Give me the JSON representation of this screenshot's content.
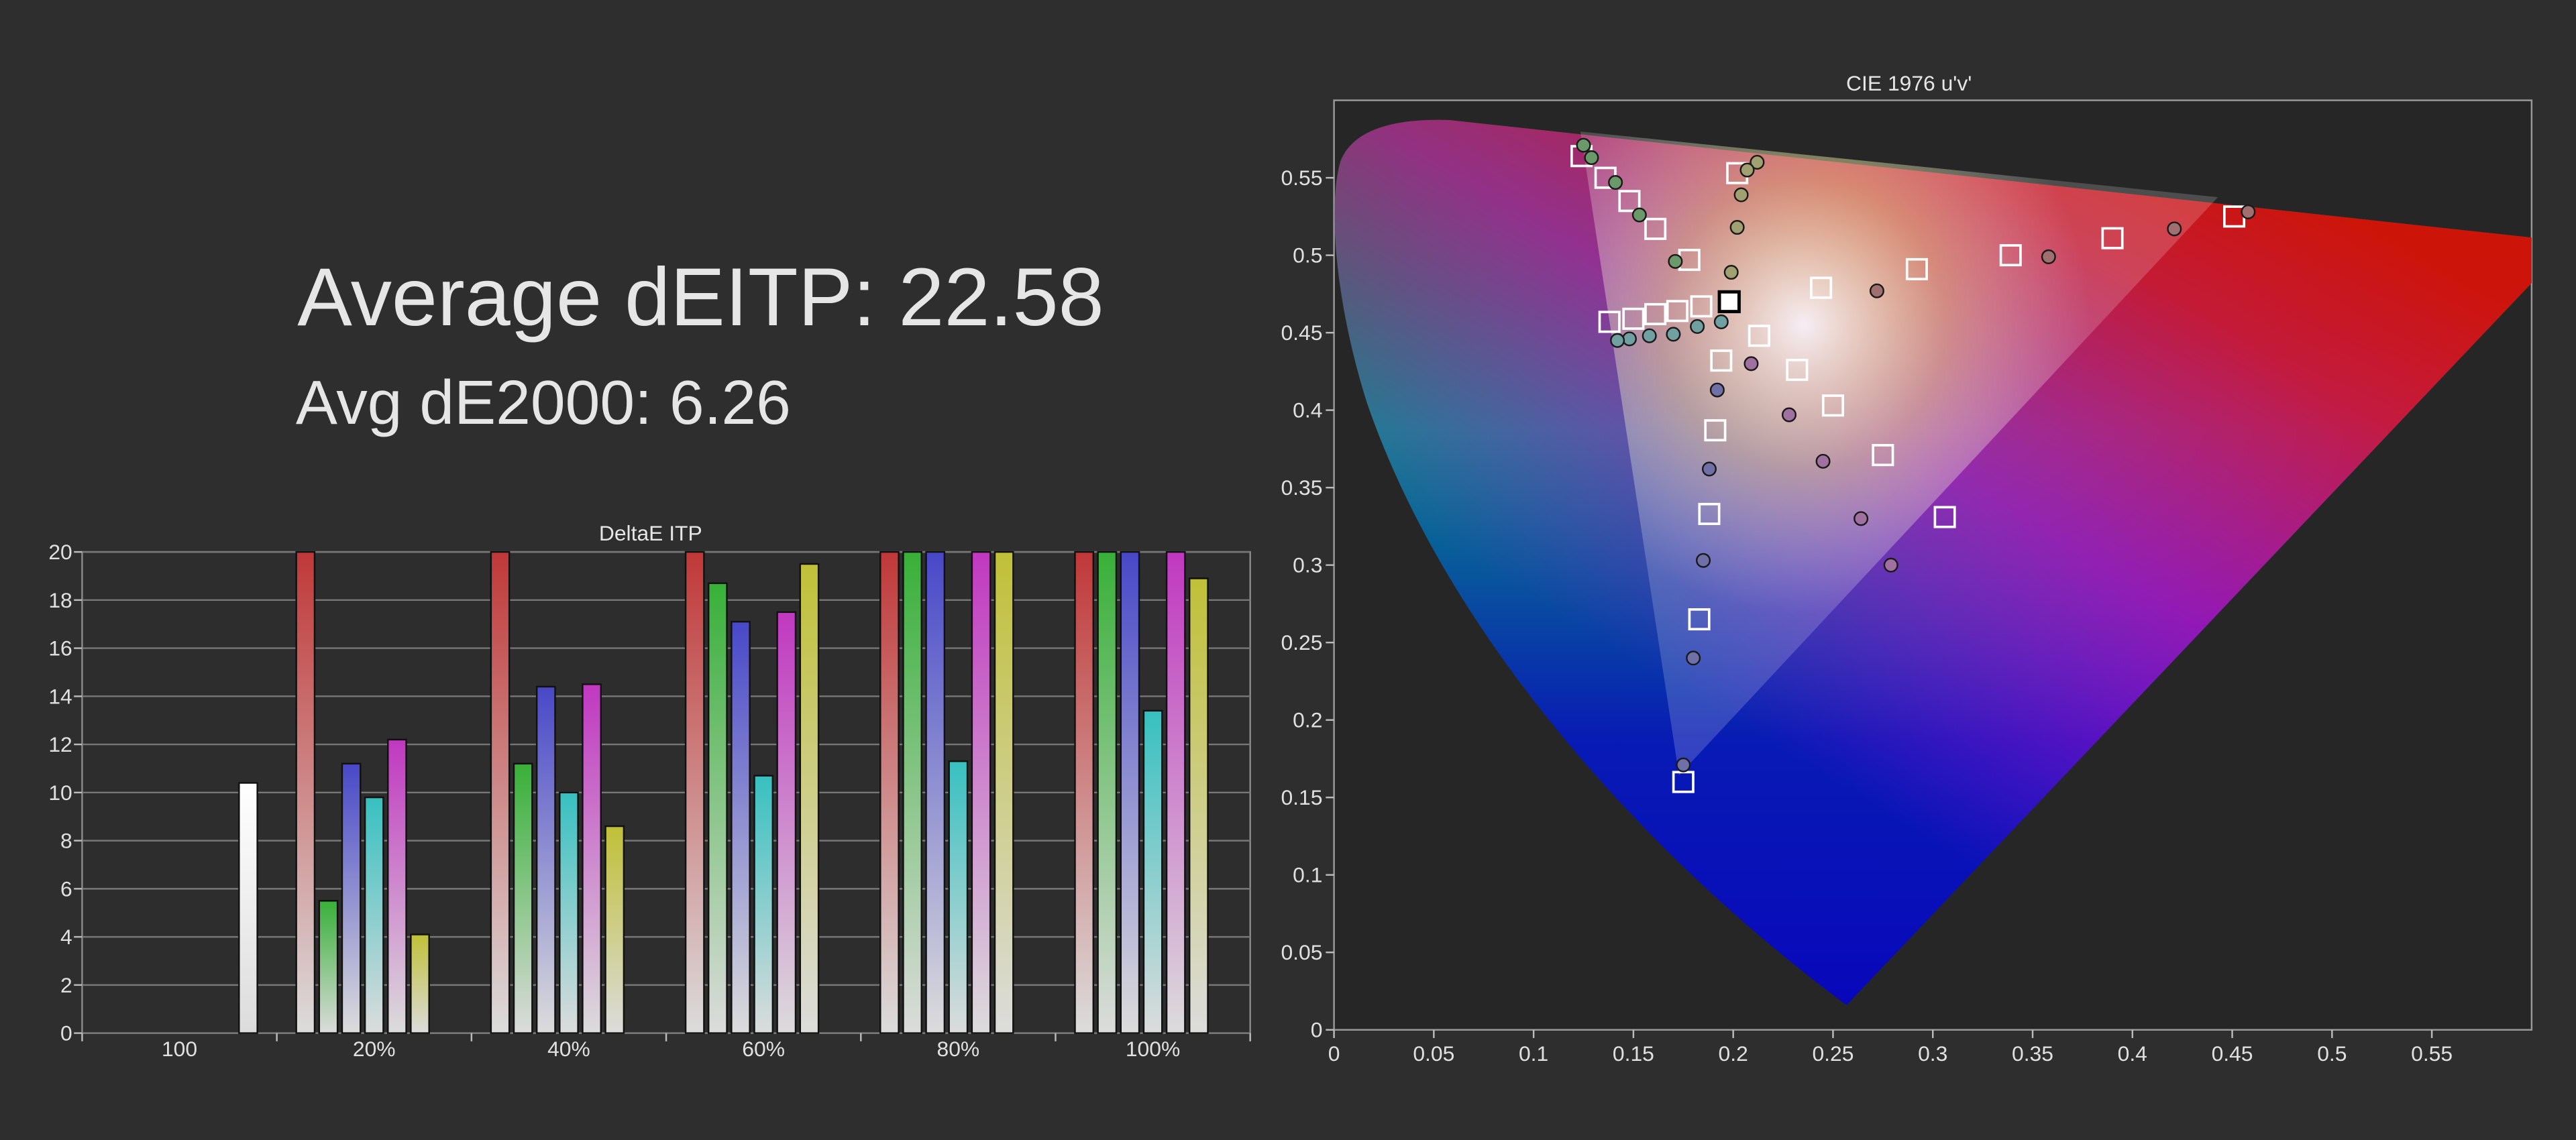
{
  "header": {
    "title": "Average dEITP: 22.58",
    "subtitle": "Avg dE2000: 6.26"
  },
  "chart_data": [
    {
      "type": "bar",
      "title": "DeltaE ITP",
      "categories": [
        "100",
        "20%",
        "40%",
        "60%",
        "80%",
        "100%"
      ],
      "ylim": [
        0,
        20
      ],
      "yticks": [
        0,
        2,
        4,
        6,
        8,
        10,
        12,
        14,
        16,
        18,
        20
      ],
      "grid": true,
      "series": [
        {
          "color": "#c03838",
          "values": [
            null,
            20,
            20,
            20,
            20,
            20
          ]
        },
        {
          "color": "#38b038",
          "values": [
            null,
            5.5,
            11.2,
            18.7,
            20,
            20
          ]
        },
        {
          "color": "#4848c8",
          "values": [
            null,
            11.2,
            14.4,
            17.1,
            20,
            20
          ]
        },
        {
          "color": "#38c0c0",
          "values": [
            null,
            9.8,
            10.0,
            10.7,
            11.3,
            13.4
          ]
        },
        {
          "color": "#c038c0",
          "values": [
            null,
            12.2,
            14.5,
            17.5,
            20,
            20
          ]
        },
        {
          "color": "#c0c038",
          "values": [
            null,
            4.1,
            8.6,
            19.5,
            20,
            18.9
          ]
        },
        {
          "color": "#ffffff",
          "values": [
            10.4,
            null,
            null,
            null,
            null,
            null
          ]
        }
      ]
    },
    {
      "type": "scatter",
      "title": "CIE 1976 u'v'",
      "xlim": [
        0,
        0.6
      ],
      "ylim": [
        0,
        0.6
      ],
      "xticks": [
        0,
        0.05,
        0.1,
        0.15,
        0.2,
        0.25,
        0.3,
        0.35,
        0.4,
        0.45,
        0.5,
        0.55
      ],
      "yticks": [
        0,
        0.05,
        0.1,
        0.15,
        0.2,
        0.25,
        0.3,
        0.35,
        0.4,
        0.45,
        0.5,
        0.55
      ],
      "series": [
        {
          "marker": "square",
          "color": "#ffffff",
          "x": [
            0.244,
            0.292,
            0.339,
            0.39,
            0.451,
            0.178,
            0.161,
            0.148,
            0.136,
            0.124,
            0.194,
            0.191,
            0.188,
            0.183,
            0.175,
            0.184,
            0.172,
            0.161,
            0.15,
            0.138,
            0.213,
            0.232,
            0.25,
            0.275,
            0.306,
            0.202
          ],
          "values": [
            0.479,
            0.491,
            0.5,
            0.511,
            0.525,
            0.497,
            0.517,
            0.535,
            0.55,
            0.564,
            0.432,
            0.387,
            0.333,
            0.265,
            0.16,
            0.467,
            0.464,
            0.462,
            0.459,
            0.457,
            0.448,
            0.426,
            0.403,
            0.371,
            0.331,
            0.553
          ]
        },
        {
          "marker": "square",
          "color": "#000000",
          "x": [
            0.198
          ],
          "values": [
            0.47
          ]
        },
        {
          "marker": "circle",
          "color": "#6a9a6a",
          "x": [
            0.125,
            0.129,
            0.141,
            0.153,
            0.171
          ],
          "values": [
            0.571,
            0.563,
            0.547,
            0.526,
            0.496
          ]
        },
        {
          "marker": "circle",
          "color": "#a0a070",
          "x": [
            0.212,
            0.207,
            0.204,
            0.202,
            0.199
          ],
          "values": [
            0.56,
            0.555,
            0.539,
            0.518,
            0.489
          ]
        },
        {
          "marker": "circle",
          "color": "#a07070",
          "x": [
            0.272,
            0.358,
            0.421,
            0.458
          ],
          "values": [
            0.477,
            0.499,
            0.517,
            0.528
          ]
        },
        {
          "marker": "circle",
          "color": "#70a0a0",
          "x": [
            0.194,
            0.182,
            0.17,
            0.158,
            0.148,
            0.142
          ],
          "values": [
            0.457,
            0.454,
            0.449,
            0.448,
            0.446,
            0.445
          ]
        },
        {
          "marker": "circle",
          "color": "#a070a0",
          "x": [
            0.209,
            0.228,
            0.245,
            0.264,
            0.279
          ],
          "values": [
            0.43,
            0.397,
            0.367,
            0.33,
            0.3
          ]
        },
        {
          "marker": "circle",
          "color": "#7070a8",
          "x": [
            0.192,
            0.188,
            0.185,
            0.18,
            0.175
          ],
          "values": [
            0.413,
            0.362,
            0.303,
            0.24,
            0.171
          ]
        }
      ]
    }
  ]
}
